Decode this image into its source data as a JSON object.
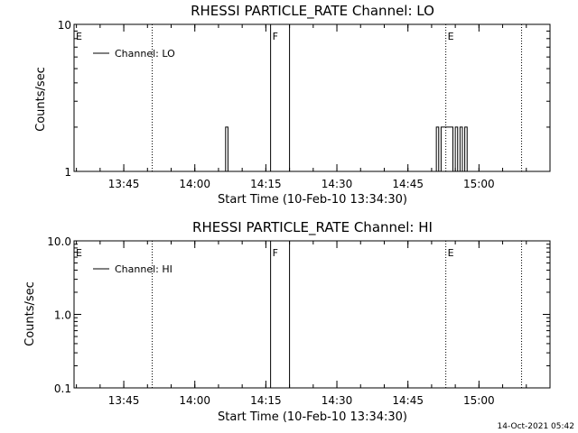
{
  "footer": {
    "timestamp": "14-Oct-2021 05:42"
  },
  "chart_data": [
    {
      "type": "line",
      "title": "RHESSI PARTICLE_RATE Channel: LO",
      "xlabel": "Start Time (10-Feb-10 13:34:30)",
      "ylabel": "Counts/sec",
      "xlim": [
        "13:34:30",
        "15:15:00"
      ],
      "ylim": [
        1,
        10
      ],
      "yscale": "log",
      "xticks": [
        "13:45",
        "14:00",
        "14:15",
        "14:30",
        "14:45",
        "15:00"
      ],
      "yticks": [
        "1",
        "10"
      ],
      "grid": false,
      "legend": {
        "position": "top-left",
        "entries": [
          "Channel: LO"
        ]
      },
      "markers": [
        {
          "label": "E",
          "time": "13:34:30",
          "style": "none"
        },
        {
          "label": "",
          "time": "13:51:00",
          "style": "dotted"
        },
        {
          "label": "F",
          "time": "14:16:00",
          "style": "solid"
        },
        {
          "label": "",
          "time": "14:20:00",
          "style": "solid"
        },
        {
          "label": "E",
          "time": "14:53:00",
          "style": "dotted"
        },
        {
          "label": "",
          "time": "15:09:00",
          "style": "dotted"
        }
      ],
      "series": [
        {
          "name": "Channel: LO",
          "points": [
            [
              "14:06:00",
              1
            ],
            [
              "14:06:30",
              2
            ],
            [
              "14:07:00",
              1
            ],
            [
              "14:50:30",
              1
            ],
            [
              "14:51:00",
              2
            ],
            [
              "14:51:30",
              1
            ],
            [
              "14:52:00",
              2
            ],
            [
              "14:54:00",
              2
            ],
            [
              "14:54:30",
              1
            ],
            [
              "14:55:00",
              2
            ],
            [
              "14:55:30",
              1
            ],
            [
              "14:56:00",
              2
            ],
            [
              "14:56:30",
              1
            ],
            [
              "14:57:00",
              2
            ],
            [
              "14:57:30",
              1
            ]
          ]
        }
      ]
    },
    {
      "type": "line",
      "title": "RHESSI PARTICLE_RATE Channel: HI",
      "xlabel": "Start Time (10-Feb-10 13:34:30)",
      "ylabel": "Counts/sec",
      "xlim": [
        "13:34:30",
        "15:15:00"
      ],
      "ylim": [
        0.1,
        10
      ],
      "yscale": "log",
      "xticks": [
        "13:45",
        "14:00",
        "14:15",
        "14:30",
        "14:45",
        "15:00"
      ],
      "yticks": [
        "0.1",
        "1.0",
        "10.0"
      ],
      "grid": false,
      "legend": {
        "position": "top-left",
        "entries": [
          "Channel: HI"
        ]
      },
      "markers": [
        {
          "label": "E",
          "time": "13:34:30",
          "style": "none"
        },
        {
          "label": "",
          "time": "13:51:00",
          "style": "dotted"
        },
        {
          "label": "F",
          "time": "14:16:00",
          "style": "solid"
        },
        {
          "label": "",
          "time": "14:20:00",
          "style": "solid"
        },
        {
          "label": "E",
          "time": "14:53:00",
          "style": "dotted"
        },
        {
          "label": "",
          "time": "15:09:00",
          "style": "dotted"
        }
      ],
      "series": [
        {
          "name": "Channel: HI",
          "points": []
        }
      ]
    }
  ]
}
